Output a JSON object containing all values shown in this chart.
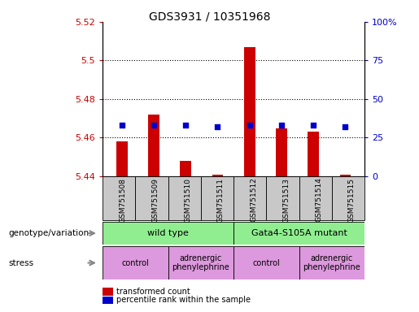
{
  "title": "GDS3931 / 10351968",
  "samples": [
    "GSM751508",
    "GSM751509",
    "GSM751510",
    "GSM751511",
    "GSM751512",
    "GSM751513",
    "GSM751514",
    "GSM751515"
  ],
  "bar_values": [
    5.458,
    5.472,
    5.448,
    5.441,
    5.507,
    5.465,
    5.463,
    5.441
  ],
  "bar_base": 5.44,
  "percentile_values": [
    33,
    33,
    33,
    32,
    33,
    33,
    33,
    32
  ],
  "ylim_left": [
    5.44,
    5.52
  ],
  "ylim_right": [
    0,
    100
  ],
  "yticks_left": [
    5.44,
    5.46,
    5.48,
    5.5,
    5.52
  ],
  "yticks_right": [
    0,
    25,
    50,
    75,
    100
  ],
  "bar_color": "#cc0000",
  "dot_color": "#0000cc",
  "genotype_groups": [
    {
      "label": "wild type",
      "start": 0,
      "end": 4,
      "color": "#90ee90"
    },
    {
      "label": "Gata4-S105A mutant",
      "start": 4,
      "end": 8,
      "color": "#90ee90"
    }
  ],
  "stress_groups": [
    {
      "label": "control",
      "start": 0,
      "end": 2,
      "color": "#dd99dd"
    },
    {
      "label": "adrenergic\nphenylephrine",
      "start": 2,
      "end": 4,
      "color": "#dd99dd"
    },
    {
      "label": "control",
      "start": 4,
      "end": 6,
      "color": "#dd99dd"
    },
    {
      "label": "adrenergic\nphenylephrine",
      "start": 6,
      "end": 8,
      "color": "#dd99dd"
    }
  ],
  "legend_items": [
    {
      "label": "transformed count",
      "color": "#cc0000"
    },
    {
      "label": "percentile rank within the sample",
      "color": "#0000cc"
    }
  ],
  "left_label_color": "#cc0000",
  "right_label_color": "#0000cc",
  "title_fontsize": 10,
  "tick_fontsize": 8,
  "bar_width": 0.35,
  "grid_yticks": [
    5.46,
    5.48,
    5.5
  ],
  "sample_box_color": "#c8c8c8",
  "label_genotype": "genotype/variation",
  "label_stress": "stress"
}
